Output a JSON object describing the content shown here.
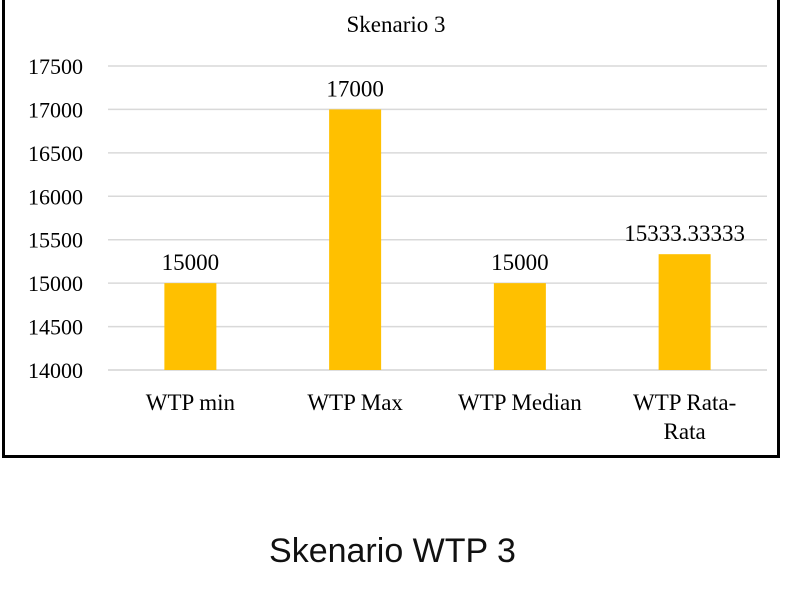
{
  "chart_data": {
    "type": "bar",
    "title": "Skenario 3",
    "categories": [
      "WTP min",
      "WTP Max",
      "WTP Median",
      "WTP Rata-Rata"
    ],
    "category_lines": [
      [
        "WTP min"
      ],
      [
        "WTP Max"
      ],
      [
        "WTP Median"
      ],
      [
        "WTP Rata-",
        "Rata"
      ]
    ],
    "values": [
      15000,
      17000,
      15000,
      15333.33333
    ],
    "data_labels": [
      "15000",
      "17000",
      "15000",
      "15333.33333"
    ],
    "ylim": [
      14000,
      17500
    ],
    "yticks": [
      14000,
      14500,
      15000,
      15500,
      16000,
      16500,
      17000,
      17500
    ],
    "grid": true,
    "legend": "none",
    "bar_color": "#FFC000",
    "gridline_color": "#D9D9D9"
  },
  "caption": "Skenario WTP 3"
}
